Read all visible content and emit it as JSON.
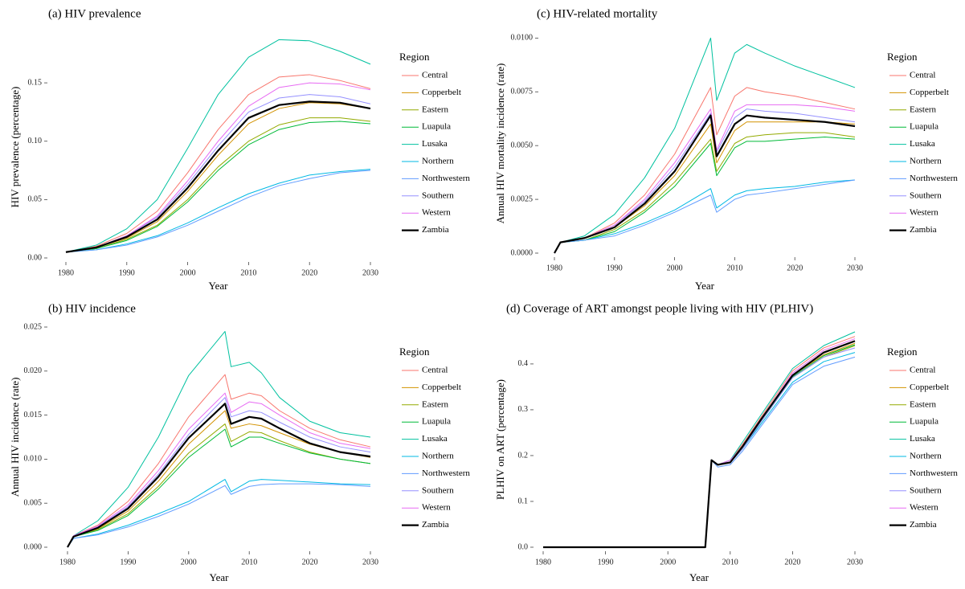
{
  "chart_data": [
    {
      "type": "line",
      "title": "(a) HIV prevalence",
      "xlabel": "Year",
      "ylabel": "HIV prevalence (percentage)",
      "legend_title": "Region",
      "x": [
        1980,
        1985,
        1990,
        1995,
        2000,
        2005,
        2010,
        2015,
        2020,
        2025,
        2030
      ],
      "xlim": [
        1980,
        2030
      ],
      "xticks": [
        1980,
        1990,
        2000,
        2010,
        2020,
        2030
      ],
      "ylim": [
        0,
        0.19
      ],
      "yticks": [
        {
          "value": 0,
          "label": "0.00"
        },
        {
          "value": 0.05,
          "label": "0.05"
        },
        {
          "value": 0.1,
          "label": "0.10"
        },
        {
          "value": 0.15,
          "label": "0.15"
        }
      ],
      "series": [
        {
          "name": "Central",
          "color": "#F8766D",
          "values": [
            0.005,
            0.01,
            0.021,
            0.04,
            0.073,
            0.11,
            0.14,
            0.155,
            0.157,
            0.152,
            0.145
          ]
        },
        {
          "name": "Copperbelt",
          "color": "#D39200",
          "values": [
            0.005,
            0.009,
            0.017,
            0.031,
            0.057,
            0.088,
            0.115,
            0.128,
            0.133,
            0.132,
            0.128
          ]
        },
        {
          "name": "Eastern",
          "color": "#93AA00",
          "values": [
            0.005,
            0.008,
            0.016,
            0.028,
            0.05,
            0.078,
            0.1,
            0.114,
            0.12,
            0.12,
            0.117
          ]
        },
        {
          "name": "Luapula",
          "color": "#00BA38",
          "values": [
            0.005,
            0.008,
            0.015,
            0.027,
            0.048,
            0.075,
            0.097,
            0.11,
            0.116,
            0.117,
            0.115
          ]
        },
        {
          "name": "Lusaka",
          "color": "#00C19F",
          "values": [
            0.005,
            0.011,
            0.025,
            0.05,
            0.094,
            0.14,
            0.172,
            0.187,
            0.186,
            0.177,
            0.166
          ]
        },
        {
          "name": "Northern",
          "color": "#00B9E3",
          "values": [
            0.005,
            0.007,
            0.012,
            0.019,
            0.03,
            0.043,
            0.055,
            0.064,
            0.071,
            0.074,
            0.076
          ]
        },
        {
          "name": "Northwestern",
          "color": "#619CFF",
          "values": [
            0.005,
            0.007,
            0.011,
            0.018,
            0.028,
            0.04,
            0.052,
            0.062,
            0.068,
            0.073,
            0.075
          ]
        },
        {
          "name": "Southern",
          "color": "#9590FF",
          "values": [
            0.005,
            0.009,
            0.019,
            0.035,
            0.063,
            0.096,
            0.125,
            0.137,
            0.14,
            0.138,
            0.132
          ]
        },
        {
          "name": "Western",
          "color": "#E76BF3",
          "values": [
            0.005,
            0.009,
            0.019,
            0.036,
            0.066,
            0.1,
            0.13,
            0.146,
            0.15,
            0.149,
            0.144
          ]
        },
        {
          "name": "Zambia",
          "color": "#000000",
          "values": [
            0.005,
            0.009,
            0.018,
            0.033,
            0.06,
            0.092,
            0.12,
            0.131,
            0.134,
            0.133,
            0.128
          ]
        }
      ]
    },
    {
      "type": "line",
      "title": "(c) HIV-related mortality",
      "xlabel": "Year",
      "ylabel": "Annual HIV mortality incidence (rate)",
      "legend_title": "Region",
      "x": [
        1980,
        1981,
        1985,
        1990,
        1995,
        2000,
        2006,
        2007,
        2010,
        2012,
        2015,
        2020,
        2025,
        2030
      ],
      "xlim": [
        1980,
        2030
      ],
      "xticks": [
        1980,
        1990,
        2000,
        2010,
        2020,
        2030
      ],
      "ylim": [
        0,
        0.0102
      ],
      "yticks": [
        {
          "value": 0,
          "label": "0.0000"
        },
        {
          "value": 0.0025,
          "label": "0.0025"
        },
        {
          "value": 0.005,
          "label": "0.0050"
        },
        {
          "value": 0.0075,
          "label": "0.0075"
        },
        {
          "value": 0.01,
          "label": "0.0100"
        }
      ],
      "series": [
        {
          "name": "Central",
          "color": "#F8766D",
          "values": [
            0,
            0.0005,
            0.0007,
            0.0014,
            0.0027,
            0.0046,
            0.0077,
            0.0055,
            0.0073,
            0.0077,
            0.0075,
            0.0073,
            0.007,
            0.0067
          ]
        },
        {
          "name": "Copperbelt",
          "color": "#D39200",
          "values": [
            0,
            0.0005,
            0.0007,
            0.0012,
            0.0022,
            0.0036,
            0.006,
            0.0042,
            0.0057,
            0.0061,
            0.0061,
            0.0061,
            0.0061,
            0.006
          ]
        },
        {
          "name": "Eastern",
          "color": "#93AA00",
          "values": [
            0,
            0.0005,
            0.0006,
            0.0011,
            0.002,
            0.0033,
            0.0053,
            0.0038,
            0.0051,
            0.0054,
            0.0055,
            0.0056,
            0.0056,
            0.0054
          ]
        },
        {
          "name": "Luapula",
          "color": "#00BA38",
          "values": [
            0,
            0.0005,
            0.0006,
            0.001,
            0.0019,
            0.0031,
            0.0051,
            0.0036,
            0.0049,
            0.0052,
            0.0052,
            0.0053,
            0.0054,
            0.0053
          ]
        },
        {
          "name": "Lusaka",
          "color": "#00C19F",
          "values": [
            0,
            0.0005,
            0.0008,
            0.0018,
            0.0035,
            0.0058,
            0.01,
            0.0071,
            0.0093,
            0.0097,
            0.0093,
            0.0087,
            0.0082,
            0.0077
          ]
        },
        {
          "name": "Northern",
          "color": "#00B9E3",
          "values": [
            0,
            0.0005,
            0.0006,
            0.0009,
            0.0014,
            0.002,
            0.003,
            0.0021,
            0.0027,
            0.0029,
            0.003,
            0.0031,
            0.0033,
            0.0034
          ]
        },
        {
          "name": "Northwestern",
          "color": "#619CFF",
          "values": [
            0,
            0.0005,
            0.0006,
            0.0008,
            0.0013,
            0.0019,
            0.0027,
            0.0019,
            0.0025,
            0.0027,
            0.0028,
            0.003,
            0.0032,
            0.0034
          ]
        },
        {
          "name": "Southern",
          "color": "#9590FF",
          "values": [
            0,
            0.0005,
            0.0007,
            0.0013,
            0.0024,
            0.004,
            0.0065,
            0.0047,
            0.0063,
            0.0067,
            0.0066,
            0.0065,
            0.0063,
            0.0061
          ]
        },
        {
          "name": "Western",
          "color": "#E76BF3",
          "values": [
            0,
            0.0005,
            0.0007,
            0.0013,
            0.0025,
            0.0042,
            0.0067,
            0.0048,
            0.0066,
            0.0069,
            0.0069,
            0.0069,
            0.0068,
            0.0066
          ]
        },
        {
          "name": "Zambia",
          "color": "#000000",
          "values": [
            0,
            0.0005,
            0.0007,
            0.0012,
            0.0023,
            0.0038,
            0.0064,
            0.0045,
            0.006,
            0.0064,
            0.0063,
            0.0062,
            0.0061,
            0.0059
          ]
        }
      ]
    },
    {
      "type": "line",
      "title": "(b) HIV incidence",
      "xlabel": "Year",
      "ylabel": "Annual HIV incidence (rate)",
      "legend_title": "Region",
      "x": [
        1980,
        1981,
        1985,
        1990,
        1995,
        2000,
        2006,
        2007,
        2010,
        2012,
        2015,
        2020,
        2025,
        2030
      ],
      "xlim": [
        1980,
        2030
      ],
      "xticks": [
        1980,
        1990,
        2000,
        2010,
        2020,
        2030
      ],
      "ylim": [
        0,
        0.025
      ],
      "yticks": [
        {
          "value": 0,
          "label": "0.000"
        },
        {
          "value": 0.005,
          "label": "0.005"
        },
        {
          "value": 0.01,
          "label": "0.010"
        },
        {
          "value": 0.015,
          "label": "0.015"
        },
        {
          "value": 0.02,
          "label": "0.020"
        },
        {
          "value": 0.025,
          "label": "0.025"
        }
      ],
      "series": [
        {
          "name": "Central",
          "color": "#F8766D",
          "values": [
            0,
            0.0013,
            0.0025,
            0.0052,
            0.0095,
            0.0148,
            0.0196,
            0.0168,
            0.0175,
            0.0172,
            0.0155,
            0.0135,
            0.0122,
            0.0114
          ]
        },
        {
          "name": "Copperbelt",
          "color": "#D39200",
          "values": [
            0,
            0.0012,
            0.0021,
            0.0041,
            0.0075,
            0.0117,
            0.0155,
            0.0135,
            0.014,
            0.0138,
            0.013,
            0.0117,
            0.0108,
            0.0102
          ]
        },
        {
          "name": "Eastern",
          "color": "#93AA00",
          "values": [
            0,
            0.0012,
            0.002,
            0.0038,
            0.0069,
            0.0107,
            0.014,
            0.012,
            0.0131,
            0.013,
            0.0121,
            0.0108,
            0.01,
            0.0095
          ]
        },
        {
          "name": "Luapula",
          "color": "#00BA38",
          "values": [
            0,
            0.0012,
            0.0019,
            0.0036,
            0.0066,
            0.0102,
            0.0134,
            0.0114,
            0.0125,
            0.0125,
            0.0118,
            0.0107,
            0.01,
            0.0095
          ]
        },
        {
          "name": "Lusaka",
          "color": "#00C19F",
          "values": [
            0,
            0.0013,
            0.003,
            0.0068,
            0.0125,
            0.0195,
            0.0245,
            0.0205,
            0.021,
            0.0198,
            0.017,
            0.0143,
            0.013,
            0.0125
          ]
        },
        {
          "name": "Northern",
          "color": "#00B9E3",
          "values": [
            0,
            0.001,
            0.0015,
            0.0025,
            0.0038,
            0.0052,
            0.0077,
            0.0063,
            0.0075,
            0.0077,
            0.0076,
            0.0074,
            0.0072,
            0.0071
          ]
        },
        {
          "name": "Northwestern",
          "color": "#619CFF",
          "values": [
            0,
            0.001,
            0.0014,
            0.0023,
            0.0035,
            0.0049,
            0.007,
            0.006,
            0.0069,
            0.0071,
            0.0072,
            0.0072,
            0.0071,
            0.0069
          ]
        },
        {
          "name": "Southern",
          "color": "#9590FF",
          "values": [
            0,
            0.0013,
            0.0023,
            0.0046,
            0.0083,
            0.0128,
            0.017,
            0.0148,
            0.0155,
            0.0153,
            0.0142,
            0.0125,
            0.0114,
            0.0108
          ]
        },
        {
          "name": "Western",
          "color": "#E76BF3",
          "values": [
            0,
            0.0013,
            0.0024,
            0.0048,
            0.0087,
            0.0134,
            0.0175,
            0.0153,
            0.0165,
            0.0163,
            0.015,
            0.013,
            0.0118,
            0.0112
          ]
        },
        {
          "name": "Zambia",
          "color": "#000000",
          "values": [
            0,
            0.0012,
            0.0022,
            0.0044,
            0.008,
            0.0124,
            0.0163,
            0.014,
            0.0148,
            0.0146,
            0.0135,
            0.0118,
            0.0108,
            0.0103
          ]
        }
      ]
    },
    {
      "type": "line",
      "title": "(d) Coverage of ART amongst people living with HIV (PLHIV)",
      "xlabel": "Year",
      "ylabel": "PLHIV on ART (percentage)",
      "legend_title": "Region",
      "x": [
        1980,
        2006,
        2007,
        2008,
        2010,
        2012,
        2015,
        2020,
        2025,
        2030
      ],
      "xlim": [
        1980,
        2030
      ],
      "xticks": [
        1980,
        1990,
        2000,
        2010,
        2020,
        2030
      ],
      "ylim": [
        0,
        0.47
      ],
      "yticks": [
        {
          "value": 0,
          "label": "0.0"
        },
        {
          "value": 0.1,
          "label": "0.1"
        },
        {
          "value": 0.2,
          "label": "0.2"
        },
        {
          "value": 0.3,
          "label": "0.3"
        },
        {
          "value": 0.4,
          "label": "0.4"
        }
      ],
      "series": [
        {
          "name": "Central",
          "color": "#F8766D",
          "values": [
            0,
            0,
            0.19,
            0.18,
            0.19,
            0.225,
            0.285,
            0.385,
            0.435,
            0.46
          ]
        },
        {
          "name": "Copperbelt",
          "color": "#D39200",
          "values": [
            0,
            0,
            0.19,
            0.18,
            0.185,
            0.22,
            0.28,
            0.375,
            0.42,
            0.445
          ]
        },
        {
          "name": "Eastern",
          "color": "#93AA00",
          "values": [
            0,
            0,
            0.19,
            0.18,
            0.185,
            0.215,
            0.275,
            0.37,
            0.415,
            0.44
          ]
        },
        {
          "name": "Luapula",
          "color": "#00BA38",
          "values": [
            0,
            0,
            0.19,
            0.18,
            0.185,
            0.215,
            0.275,
            0.372,
            0.418,
            0.442
          ]
        },
        {
          "name": "Lusaka",
          "color": "#00C19F",
          "values": [
            0,
            0,
            0.19,
            0.18,
            0.19,
            0.23,
            0.29,
            0.39,
            0.44,
            0.47
          ]
        },
        {
          "name": "Northern",
          "color": "#00B9E3",
          "values": [
            0,
            0,
            0.19,
            0.18,
            0.185,
            0.215,
            0.27,
            0.36,
            0.405,
            0.425
          ]
        },
        {
          "name": "Northwestern",
          "color": "#619CFF",
          "values": [
            0,
            0,
            0.19,
            0.175,
            0.18,
            0.21,
            0.265,
            0.355,
            0.395,
            0.415
          ]
        },
        {
          "name": "Southern",
          "color": "#9590FF",
          "values": [
            0,
            0,
            0.19,
            0.18,
            0.185,
            0.215,
            0.275,
            0.37,
            0.415,
            0.435
          ]
        },
        {
          "name": "Western",
          "color": "#E76BF3",
          "values": [
            0,
            0,
            0.19,
            0.18,
            0.19,
            0.22,
            0.28,
            0.38,
            0.43,
            0.455
          ]
        },
        {
          "name": "Zambia",
          "color": "#000000",
          "values": [
            0,
            0,
            0.19,
            0.18,
            0.185,
            0.22,
            0.28,
            0.375,
            0.425,
            0.45
          ]
        }
      ]
    }
  ]
}
